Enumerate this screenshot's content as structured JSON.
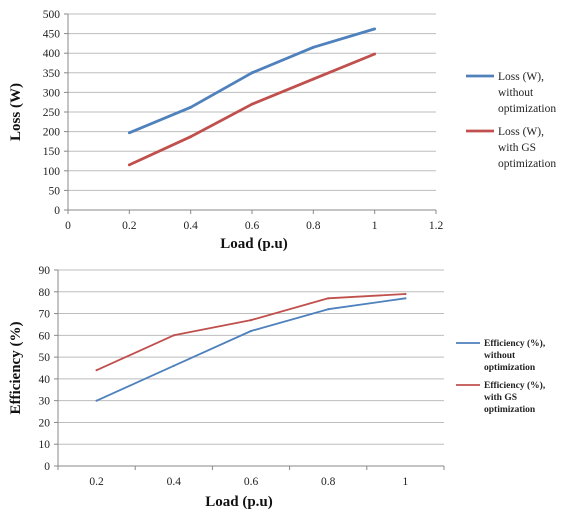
{
  "chart_data": [
    {
      "type": "line",
      "title": "",
      "xlabel": "Load (p.u)",
      "ylabel": "Loss (W)",
      "xlim": [
        0,
        1.2
      ],
      "ylim": [
        0,
        500
      ],
      "xticks": [
        "0",
        "0.2",
        "0.4",
        "0.6",
        "0.8",
        "1",
        "1.2"
      ],
      "yticks": [
        "0",
        "50",
        "100",
        "150",
        "200",
        "250",
        "300",
        "350",
        "400",
        "450",
        "500"
      ],
      "grid": "horizontal",
      "legend_position": "right",
      "series": [
        {
          "name_lines": [
            "Loss (W),",
            "without",
            "optimization"
          ],
          "color": "#4f81bd",
          "points": [
            [
              0.2,
              197
            ],
            [
              0.4,
              262
            ],
            [
              0.6,
              350
            ],
            [
              0.8,
              415
            ],
            [
              1.0,
              462
            ]
          ]
        },
        {
          "name_lines": [
            "Loss (W),",
            "with GS",
            "optimization"
          ],
          "color": "#c0504d",
          "points": [
            [
              0.2,
              115
            ],
            [
              0.4,
              187
            ],
            [
              0.6,
              270
            ],
            [
              0.8,
              334
            ],
            [
              1.0,
              398
            ]
          ]
        }
      ]
    },
    {
      "type": "line",
      "title": "",
      "xlabel": "Load (p.u)",
      "ylabel": "Efficiency (%)",
      "categories": [
        "0.2",
        "0.4",
        "0.6",
        "0.8",
        "1"
      ],
      "ylim": [
        0,
        90
      ],
      "yticks": [
        "0",
        "10",
        "20",
        "30",
        "40",
        "50",
        "60",
        "70",
        "80",
        "90"
      ],
      "grid": "horizontal",
      "legend_position": "right",
      "series": [
        {
          "name_lines": [
            "Efficiency (%),",
            "without",
            "optimization"
          ],
          "color": "#4f81bd",
          "values": [
            30,
            46,
            62,
            72,
            77
          ]
        },
        {
          "name_lines": [
            "Efficiency (%),",
            "with GS",
            "optimization"
          ],
          "color": "#c0504d",
          "values": [
            44,
            60,
            67,
            77,
            79
          ]
        }
      ]
    }
  ]
}
